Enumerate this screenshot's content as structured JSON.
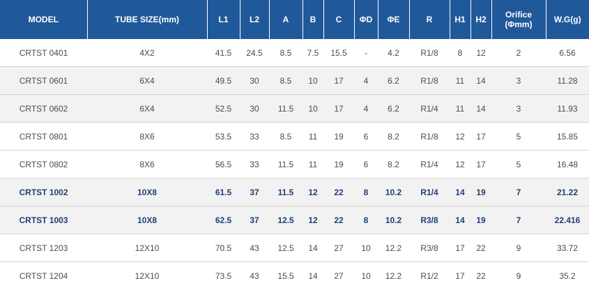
{
  "table": {
    "headers": [
      "MODEL",
      "TUBE SIZE(mm)",
      "L1",
      "L2",
      "A",
      "B",
      "C",
      "ΦD",
      "ΦE",
      "R",
      "H1",
      "H2",
      "Orifice\n(Φmm)",
      "W.G(g)"
    ],
    "rows": [
      [
        "CRTST 0401",
        "4X2",
        "41.5",
        "24.5",
        "8.5",
        "7.5",
        "15.5",
        "-",
        "4.2",
        "R1/8",
        "8",
        "12",
        "2",
        "6.56"
      ],
      [
        "CRTST 0601",
        "6X4",
        "49.5",
        "30",
        "8.5",
        "10",
        "17",
        "4",
        "6.2",
        "R1/8",
        "11",
        "14",
        "3",
        "11.28"
      ],
      [
        "CRTST 0602",
        "6X4",
        "52.5",
        "30",
        "11.5",
        "10",
        "17",
        "4",
        "6.2",
        "R1/4",
        "11",
        "14",
        "3",
        "11.93"
      ],
      [
        "CRTST 0801",
        "8X6",
        "53.5",
        "33",
        "8.5",
        "11",
        "19",
        "6",
        "8.2",
        "R1/8",
        "12",
        "17",
        "5",
        "15.85"
      ],
      [
        "CRTST 0802",
        "8X6",
        "56.5",
        "33",
        "11.5",
        "11",
        "19",
        "6",
        "8.2",
        "R1/4",
        "12",
        "17",
        "5",
        "16.48"
      ],
      [
        "CRTST 1002",
        "10X8",
        "61.5",
        "37",
        "11.5",
        "12",
        "22",
        "8",
        "10.2",
        "R1/4",
        "14",
        "19",
        "7",
        "21.22"
      ],
      [
        "CRTST 1003",
        "10X8",
        "62.5",
        "37",
        "12.5",
        "12",
        "22",
        "8",
        "10.2",
        "R3/8",
        "14",
        "19",
        "7",
        "22.416"
      ],
      [
        "CRTST 1203",
        "12X10",
        "70.5",
        "43",
        "12.5",
        "14",
        "27",
        "10",
        "12.2",
        "R3/8",
        "17",
        "22",
        "9",
        "33.72"
      ],
      [
        "CRTST 1204",
        "12X10",
        "73.5",
        "43",
        "15.5",
        "14",
        "27",
        "10",
        "12.2",
        "R1/2",
        "17",
        "22",
        "9",
        "35.2"
      ]
    ]
  }
}
